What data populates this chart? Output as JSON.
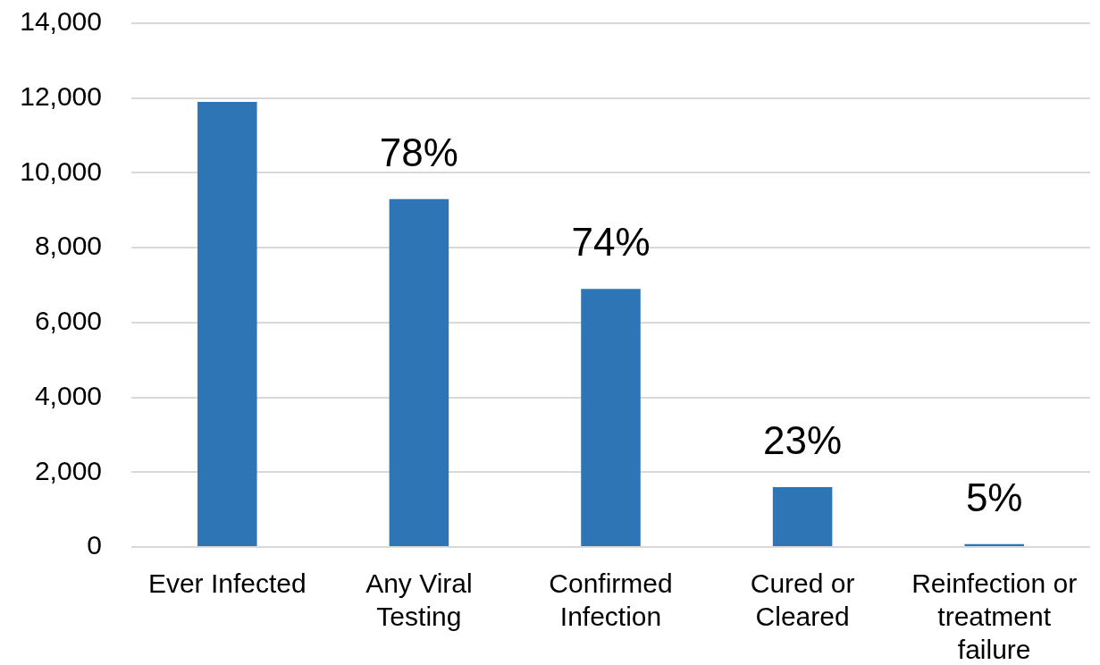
{
  "chart_data": {
    "type": "bar",
    "categories": [
      "Ever Infected",
      "Any Viral Testing",
      "Confirmed Infection",
      "Cured or Cleared",
      "Reinfection or treatment failure"
    ],
    "values": [
      11900,
      9300,
      6900,
      1600,
      80
    ],
    "annotations": [
      {
        "text": "78%",
        "x": "Any Viral Testing",
        "y": 9300
      },
      {
        "text": "74%",
        "x": "Confirmed Infection",
        "y": 6900
      },
      {
        "text": "23%",
        "x": "Cured or Cleared",
        "y": 1600
      },
      {
        "text": "5%",
        "x": "Reinfection or treatment failure",
        "y": 80
      }
    ],
    "color": "#2e75b6",
    "ylim": [
      0,
      14000
    ],
    "yticks": [
      0,
      {
        "value": 2000,
        "label": "2,000"
      },
      {
        "value": 4000,
        "label": "4,000"
      },
      {
        "value": 6000,
        "label": "6,000"
      },
      {
        "value": 8000,
        "label": "8,000"
      },
      {
        "value": 10000,
        "label": "10,000"
      },
      {
        "value": 12000,
        "label": "12,000"
      },
      {
        "value": 14000,
        "label": "14,000"
      }
    ],
    "grid": "y"
  }
}
